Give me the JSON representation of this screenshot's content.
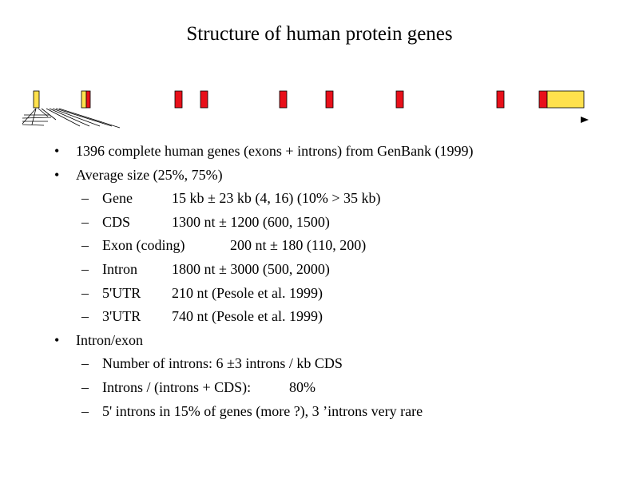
{
  "slide": {
    "title": "Structure of human protein genes"
  },
  "gene_diagram": {
    "colors": {
      "exon_utr": "#ffe14d",
      "exon_coding": "#e8101a",
      "outline": "#000000"
    },
    "exons": [
      {
        "kind": "utr"
      },
      {
        "kind": "utr+coding"
      },
      {
        "kind": "coding"
      },
      {
        "kind": "coding"
      },
      {
        "kind": "coding"
      },
      {
        "kind": "coding"
      },
      {
        "kind": "coding"
      },
      {
        "kind": "coding"
      },
      {
        "kind": "coding+utr"
      }
    ],
    "direction_glyph": "▶"
  },
  "bullets": [
    {
      "level": 1,
      "text": "1396 complete human genes (exons + introns) from GenBank (1999)"
    },
    {
      "level": 1,
      "text": "Average size (25%, 75%)"
    },
    {
      "level": 2,
      "label": "Gene",
      "value": "15 kb ± 23 kb (4, 16) (10% > 35 kb)"
    },
    {
      "level": 2,
      "label": "CDS",
      "value": "1300 nt ± 1200 (600, 1500)"
    },
    {
      "level": 2,
      "label": "Exon (coding)",
      "value": "200 nt ± 180 (110, 200)"
    },
    {
      "level": 2,
      "label": "Intron",
      "value": "1800 nt ± 3000 (500, 2000)"
    },
    {
      "level": 2,
      "label": "5'UTR",
      "value": "210 nt (Pesole et al. 1999)"
    },
    {
      "level": 2,
      "label": "3'UTR",
      "value": "740 nt (Pesole et al. 1999)"
    },
    {
      "level": 1,
      "text": "Intron/exon"
    },
    {
      "level": 2,
      "text": "Number of introns: 6 ±3 introns / kb CDS"
    },
    {
      "level": 2,
      "label": "Introns / (introns + CDS):",
      "value": "80%"
    },
    {
      "level": 2,
      "text": "5' introns in 15% of genes (more ?), 3 ’introns very rare"
    }
  ],
  "markers": {
    "level1": "•",
    "level2": "–"
  }
}
